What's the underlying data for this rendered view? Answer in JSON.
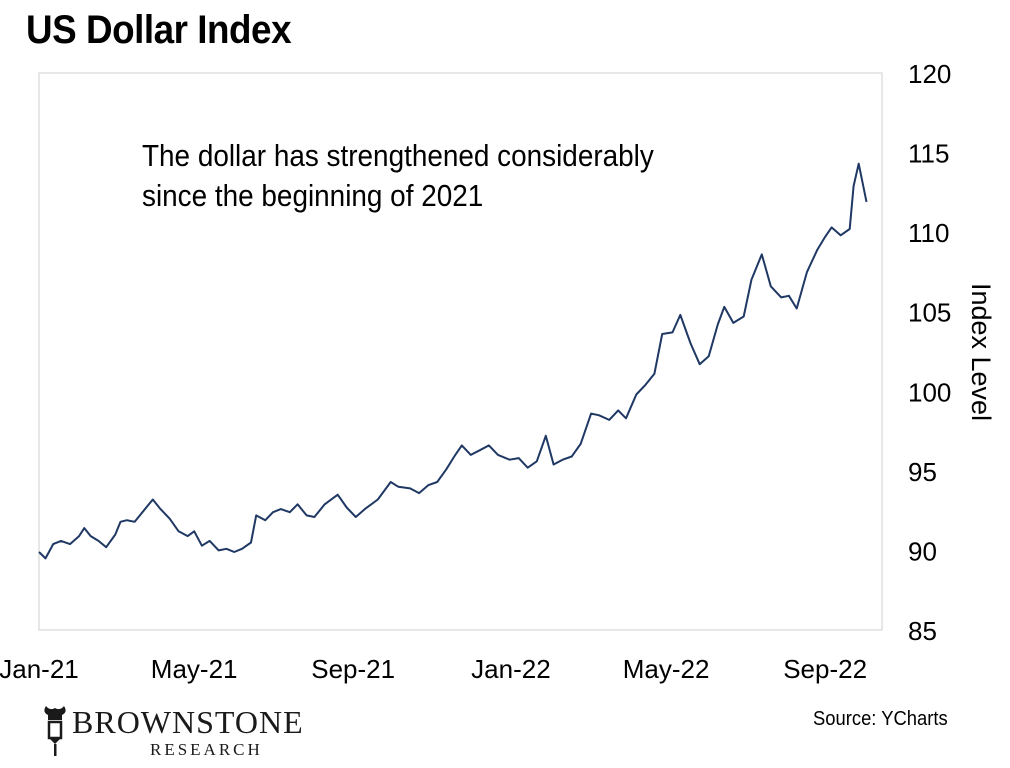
{
  "source": "Source: YCharts",
  "brand": {
    "name": "BROWNSTONE",
    "subtitle": "RESEARCH"
  },
  "chart_data": {
    "type": "line",
    "title": "US Dollar Index",
    "ylabel": "Index Level",
    "xlabel": "",
    "annotation": [
      "The dollar has strengthened considerably",
      "since the beginning of 2021"
    ],
    "ylim": [
      85,
      120
    ],
    "yticks": [
      85,
      90,
      95,
      100,
      105,
      110,
      115,
      120
    ],
    "xlim": [
      "2021-01-01",
      "2022-10-15"
    ],
    "xticks": [
      {
        "date": "2021-01-01",
        "label": "Jan-21"
      },
      {
        "date": "2021-05-01",
        "label": "May-21"
      },
      {
        "date": "2021-09-01",
        "label": "Sep-21"
      },
      {
        "date": "2022-01-01",
        "label": "Jan-22"
      },
      {
        "date": "2022-05-01",
        "label": "May-22"
      },
      {
        "date": "2022-09-01",
        "label": "Sep-22"
      }
    ],
    "grid": false,
    "line_color": "#1f3864",
    "series": [
      {
        "points": [
          [
            "2021-01-01",
            89.9
          ],
          [
            "2021-01-06",
            89.5
          ],
          [
            "2021-01-12",
            90.4
          ],
          [
            "2021-01-18",
            90.6
          ],
          [
            "2021-01-25",
            90.4
          ],
          [
            "2021-02-01",
            90.9
          ],
          [
            "2021-02-05",
            91.4
          ],
          [
            "2021-02-10",
            90.9
          ],
          [
            "2021-02-16",
            90.6
          ],
          [
            "2021-02-22",
            90.2
          ],
          [
            "2021-03-01",
            91.0
          ],
          [
            "2021-03-05",
            91.8
          ],
          [
            "2021-03-10",
            91.9
          ],
          [
            "2021-03-16",
            91.8
          ],
          [
            "2021-03-22",
            92.4
          ],
          [
            "2021-03-30",
            93.2
          ],
          [
            "2021-04-05",
            92.6
          ],
          [
            "2021-04-12",
            92.0
          ],
          [
            "2021-04-19",
            91.2
          ],
          [
            "2021-04-26",
            90.9
          ],
          [
            "2021-05-01",
            91.2
          ],
          [
            "2021-05-07",
            90.3
          ],
          [
            "2021-05-13",
            90.6
          ],
          [
            "2021-05-20",
            90.0
          ],
          [
            "2021-05-26",
            90.1
          ],
          [
            "2021-06-01",
            89.9
          ],
          [
            "2021-06-07",
            90.1
          ],
          [
            "2021-06-14",
            90.5
          ],
          [
            "2021-06-18",
            92.2
          ],
          [
            "2021-06-25",
            91.9
          ],
          [
            "2021-07-01",
            92.4
          ],
          [
            "2021-07-07",
            92.6
          ],
          [
            "2021-07-14",
            92.4
          ],
          [
            "2021-07-20",
            92.9
          ],
          [
            "2021-07-27",
            92.2
          ],
          [
            "2021-08-02",
            92.1
          ],
          [
            "2021-08-10",
            92.9
          ],
          [
            "2021-08-20",
            93.5
          ],
          [
            "2021-08-27",
            92.7
          ],
          [
            "2021-09-03",
            92.1
          ],
          [
            "2021-09-10",
            92.6
          ],
          [
            "2021-09-20",
            93.2
          ],
          [
            "2021-09-30",
            94.3
          ],
          [
            "2021-10-06",
            94.0
          ],
          [
            "2021-10-15",
            93.9
          ],
          [
            "2021-10-22",
            93.6
          ],
          [
            "2021-10-29",
            94.1
          ],
          [
            "2021-11-05",
            94.3
          ],
          [
            "2021-11-12",
            95.1
          ],
          [
            "2021-11-19",
            96.0
          ],
          [
            "2021-11-24",
            96.6
          ],
          [
            "2021-12-01",
            96.0
          ],
          [
            "2021-12-08",
            96.3
          ],
          [
            "2021-12-15",
            96.6
          ],
          [
            "2021-12-22",
            96.0
          ],
          [
            "2021-12-31",
            95.7
          ],
          [
            "2022-01-07",
            95.8
          ],
          [
            "2022-01-14",
            95.2
          ],
          [
            "2022-01-21",
            95.6
          ],
          [
            "2022-01-28",
            97.2
          ],
          [
            "2022-02-03",
            95.4
          ],
          [
            "2022-02-10",
            95.7
          ],
          [
            "2022-02-17",
            95.9
          ],
          [
            "2022-02-24",
            96.7
          ],
          [
            "2022-03-04",
            98.6
          ],
          [
            "2022-03-10",
            98.5
          ],
          [
            "2022-03-18",
            98.2
          ],
          [
            "2022-03-25",
            98.8
          ],
          [
            "2022-03-31",
            98.3
          ],
          [
            "2022-04-08",
            99.8
          ],
          [
            "2022-04-15",
            100.4
          ],
          [
            "2022-04-22",
            101.1
          ],
          [
            "2022-04-28",
            103.6
          ],
          [
            "2022-05-06",
            103.7
          ],
          [
            "2022-05-12",
            104.8
          ],
          [
            "2022-05-20",
            103.0
          ],
          [
            "2022-05-27",
            101.7
          ],
          [
            "2022-06-03",
            102.2
          ],
          [
            "2022-06-10",
            104.2
          ],
          [
            "2022-06-15",
            105.3
          ],
          [
            "2022-06-22",
            104.3
          ],
          [
            "2022-06-30",
            104.7
          ],
          [
            "2022-07-06",
            107.0
          ],
          [
            "2022-07-14",
            108.6
          ],
          [
            "2022-07-21",
            106.6
          ],
          [
            "2022-07-29",
            105.9
          ],
          [
            "2022-08-04",
            106.0
          ],
          [
            "2022-08-10",
            105.2
          ],
          [
            "2022-08-18",
            107.5
          ],
          [
            "2022-08-26",
            108.9
          ],
          [
            "2022-09-01",
            109.7
          ],
          [
            "2022-09-06",
            110.3
          ],
          [
            "2022-09-13",
            109.8
          ],
          [
            "2022-09-20",
            110.2
          ],
          [
            "2022-09-23",
            112.9
          ],
          [
            "2022-09-27",
            114.3
          ],
          [
            "2022-10-03",
            111.9
          ]
        ]
      }
    ]
  }
}
